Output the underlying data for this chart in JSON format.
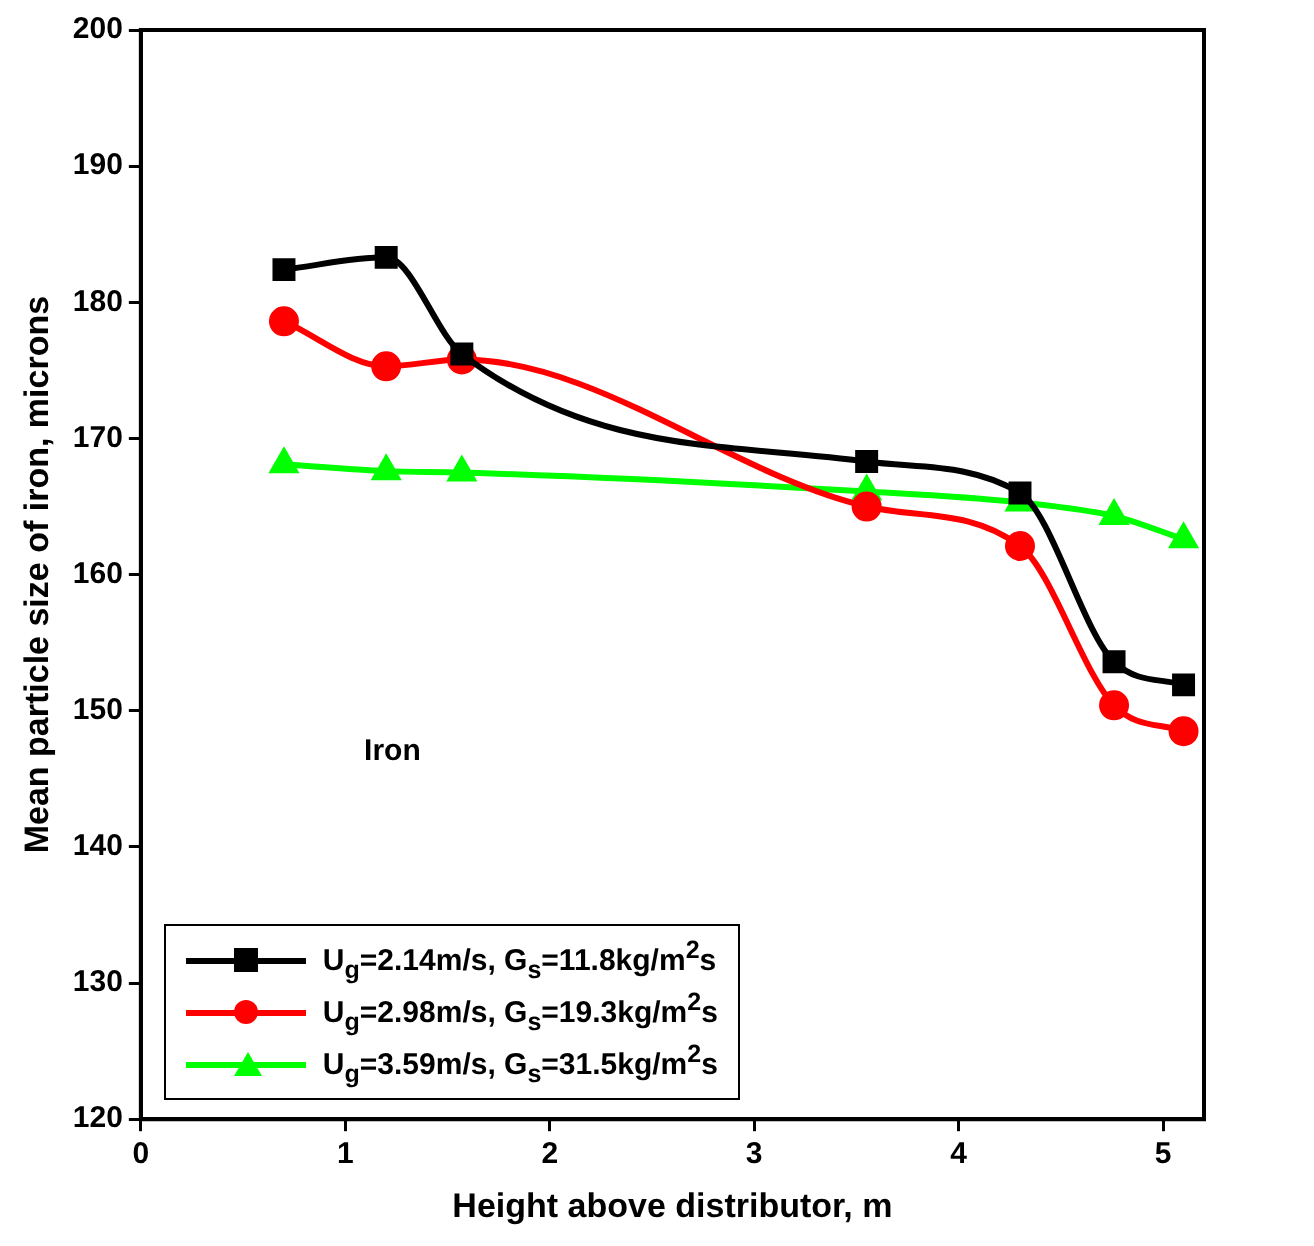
{
  "chart_data": {
    "type": "line",
    "xlabel": "Height above distributor, m",
    "ylabel": "Mean particle size of iron, microns",
    "annotations": [
      "Iron"
    ],
    "x": [
      0.7,
      1.2,
      1.57,
      3.55,
      4.3,
      4.76,
      5.1
    ],
    "series": [
      {
        "name": "U$_{g}$=2.14m/s, G$_{s}$=11.8kg/m$^{2}$s",
        "color": "#000000",
        "marker": "square",
        "values": [
          182.4,
          183.3,
          176.2,
          168.3,
          166.0,
          153.6,
          151.9
        ]
      },
      {
        "name": "U$_{g}$=2.98m/s, G$_{s}$=19.3kg/m$^{2}$s",
        "color": "#ff0000",
        "marker": "circle",
        "values": [
          178.6,
          175.3,
          175.8,
          165.0,
          162.1,
          150.4,
          148.5
        ]
      },
      {
        "name": "U$_{g}$=3.59m/s, G$_{s}$=31.5kg/m$^{2}$s",
        "color": "#00ff00",
        "marker": "triangle",
        "values": [
          168.1,
          167.6,
          167.5,
          166.1,
          165.3,
          164.3,
          162.6
        ]
      }
    ],
    "xlim": [
      0,
      5.2
    ],
    "xticks": [
      0,
      1,
      2,
      3,
      4,
      5
    ],
    "ylim": [
      120,
      200
    ],
    "yticks": [
      120,
      130,
      140,
      150,
      160,
      170,
      180,
      190,
      200
    ],
    "grid": false,
    "legend": "bottom left",
    "line_style": "solid"
  }
}
